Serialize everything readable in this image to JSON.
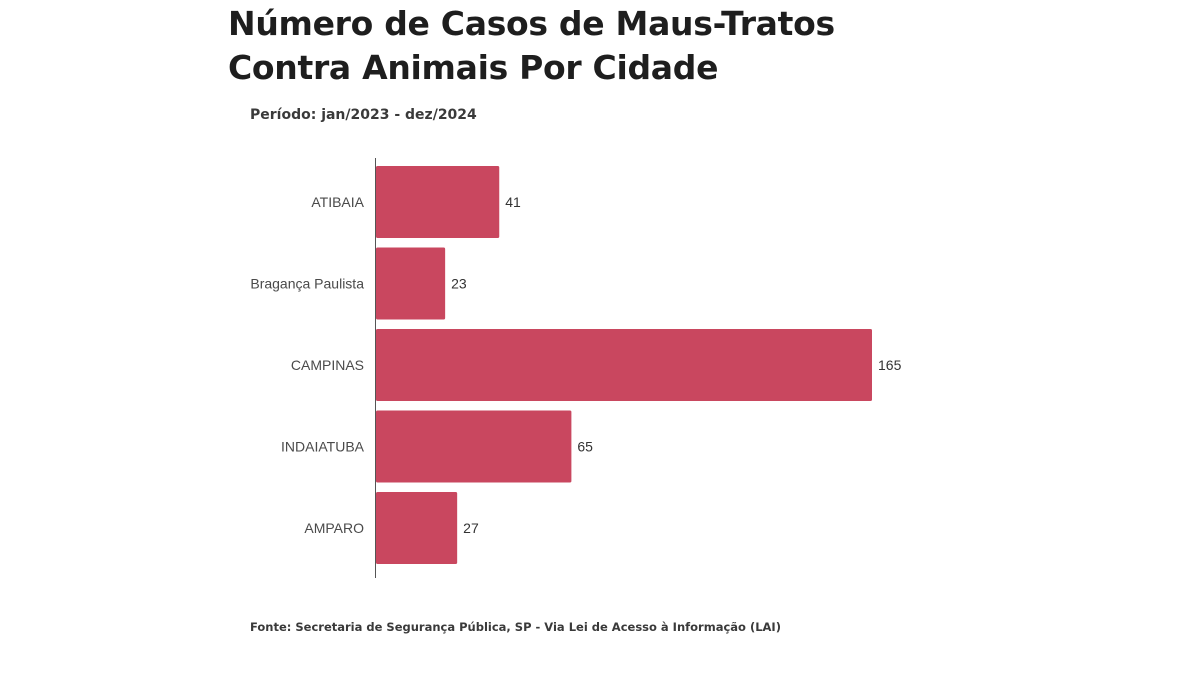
{
  "chart_data": {
    "type": "bar",
    "orientation": "horizontal",
    "title": "Número de Casos de Maus-Tratos Contra Animais Por Cidade",
    "subtitle": "Período: jan/2023 - dez/2024",
    "categories": [
      "ATIBAIA",
      "Bragança Paulista",
      "CAMPINAS",
      "INDAIATUBA",
      "AMPARO"
    ],
    "values": [
      41,
      23,
      165,
      65,
      27
    ],
    "value_labels": [
      "41",
      "23",
      "165",
      "65",
      "27"
    ],
    "xlabel": "",
    "ylabel": "",
    "xlim": [
      0,
      165
    ],
    "grid": false,
    "legend": "none",
    "bar_color": "#c9475f",
    "source": "Fonte: Secretaria de Segurança Pública, SP - Via Lei de Acesso à Informação (LAI)"
  }
}
